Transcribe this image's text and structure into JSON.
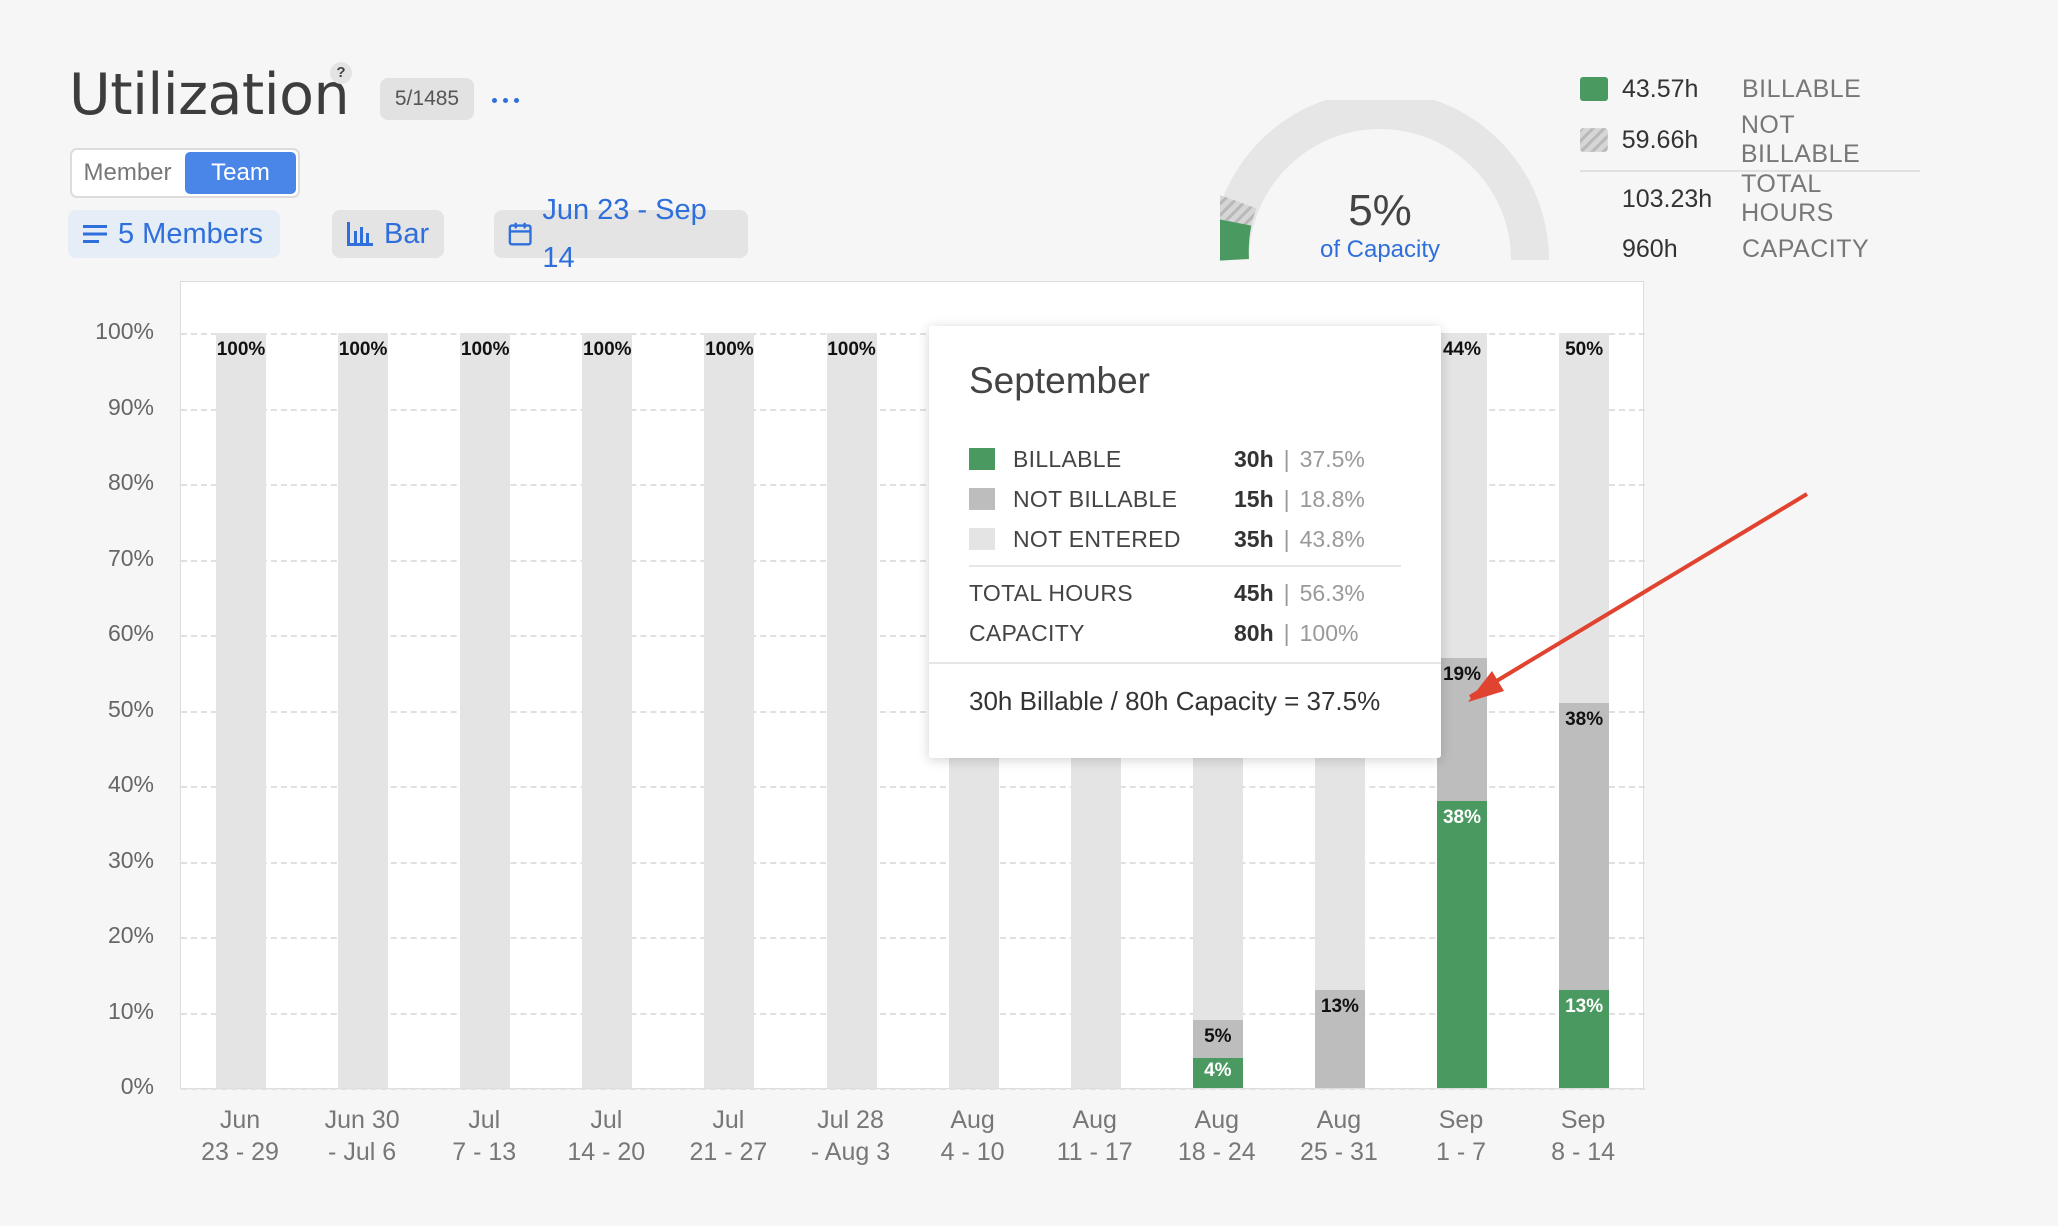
{
  "header": {
    "title": "Utilization",
    "help": "?",
    "counter": "5/1485",
    "view_toggle": [
      "Member",
      "Team"
    ],
    "active_view": "Team"
  },
  "toolbar": {
    "members": "5 Members",
    "chart_type": "Bar",
    "date_range": "Jun 23 - Sep 14"
  },
  "gauge": {
    "percent_text": "5%",
    "subtitle": "of Capacity",
    "billable_share": 0.05
  },
  "summary": [
    {
      "value": "43.57h",
      "label": "BILLABLE"
    },
    {
      "value": "59.66h",
      "label": "NOT BILLABLE"
    },
    {
      "value": "103.23h",
      "label": "TOTAL HOURS"
    },
    {
      "value": "960h",
      "label": "CAPACITY"
    }
  ],
  "colors": {
    "billable": "#4a9960",
    "not_billable": "#bdbdbd",
    "not_entered": "#e4e4e4",
    "accent": "#4a86e8",
    "arrow": "#e0432f"
  },
  "chart_data": {
    "type": "bar",
    "stacked": true,
    "ylim": [
      0,
      100
    ],
    "yticks": [
      "100%",
      "90%",
      "80%",
      "70%",
      "60%",
      "50%",
      "40%",
      "30%",
      "20%",
      "10%",
      "0%"
    ],
    "grid": true,
    "categories": [
      [
        "Jun",
        "23 - 29"
      ],
      [
        "Jun 30",
        "- Jul 6"
      ],
      [
        "Jul",
        "7 - 13"
      ],
      [
        "Jul",
        "14 - 20"
      ],
      [
        "Jul",
        "21 - 27"
      ],
      [
        "Jul 28",
        "- Aug 3"
      ],
      [
        "Aug",
        "4 - 10"
      ],
      [
        "Aug",
        "11 - 17"
      ],
      [
        "Aug",
        "18 - 24"
      ],
      [
        "Aug",
        "25 - 31"
      ],
      [
        "Sep",
        "1 - 7"
      ],
      [
        "Sep",
        "8 - 14"
      ]
    ],
    "series": [
      {
        "name": "BILLABLE",
        "values": [
          0,
          0,
          0,
          0,
          0,
          0,
          0,
          0,
          4,
          0,
          38,
          13
        ]
      },
      {
        "name": "NOT BILLABLE",
        "values": [
          0,
          0,
          0,
          0,
          0,
          0,
          0,
          0,
          5,
          13,
          19,
          38
        ]
      },
      {
        "name": "NOT ENTERED",
        "values": [
          100,
          100,
          100,
          100,
          100,
          100,
          100,
          100,
          91,
          87,
          43,
          49
        ]
      }
    ],
    "bar_labels": [
      {
        "i": 0,
        "text": "100%"
      },
      {
        "i": 1,
        "text": "100%"
      },
      {
        "i": 2,
        "text": "100%"
      },
      {
        "i": 3,
        "text": "100%"
      },
      {
        "i": 4,
        "text": "100%"
      },
      {
        "i": 5,
        "text": "100%"
      },
      {
        "i": 8,
        "seg": "billable",
        "text": "4%"
      },
      {
        "i": 8,
        "seg": "not_billable",
        "text": "5%"
      },
      {
        "i": 9,
        "seg": "not_billable",
        "text": "13%"
      },
      {
        "i": 10,
        "seg": "billable",
        "text": "38%"
      },
      {
        "i": 10,
        "seg": "not_billable",
        "text": "19%"
      },
      {
        "i": 10,
        "seg": "top",
        "text": "44%"
      },
      {
        "i": 11,
        "seg": "billable",
        "text": "13%"
      },
      {
        "i": 11,
        "seg": "not_billable",
        "text": "38%"
      },
      {
        "i": 11,
        "seg": "top",
        "text": "50%"
      }
    ]
  },
  "tooltip": {
    "title": "September",
    "rows": [
      {
        "name": "BILLABLE",
        "hours": "30h",
        "sep": "|",
        "pct": "37.5%"
      },
      {
        "name": "NOT BILLABLE",
        "hours": "15h",
        "sep": "|",
        "pct": "18.8%"
      },
      {
        "name": "NOT ENTERED",
        "hours": "35h",
        "sep": "|",
        "pct": "43.8%"
      }
    ],
    "totals": [
      {
        "name": "TOTAL HOURS",
        "hours": "45h",
        "sep": "|",
        "pct": "56.3%"
      },
      {
        "name": "CAPACITY",
        "hours": "80h",
        "sep": "|",
        "pct": "100%"
      }
    ],
    "footer": "30h Billable / 80h Capacity = 37.5%"
  }
}
